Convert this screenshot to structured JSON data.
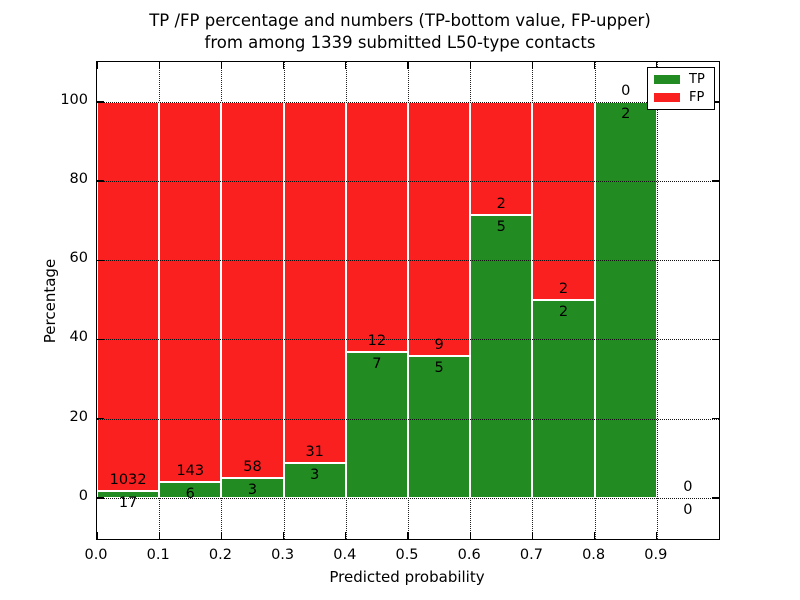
{
  "chart_data": {
    "type": "bar",
    "stacked": true,
    "title_lines": [
      "TP /FP percentage and numbers (TP-bottom value, FP-upper)",
      "from among 1339 submitted L50-type contacts"
    ],
    "xlabel": "Predicted probability",
    "ylabel": "Percentage",
    "total_submitted_contacts": 1339,
    "bins": [
      "0.0-0.1",
      "0.1-0.2",
      "0.2-0.3",
      "0.3-0.4",
      "0.4-0.5",
      "0.5-0.6",
      "0.6-0.7",
      "0.7-0.8",
      "0.8-0.9",
      "0.9-1.0"
    ],
    "bin_width": 0.1,
    "series": [
      {
        "name": "TP",
        "color": "#228b22",
        "counts": [
          17,
          6,
          3,
          3,
          7,
          5,
          5,
          2,
          2,
          0
        ]
      },
      {
        "name": "FP",
        "color": "#fa2020",
        "counts": [
          1032,
          143,
          58,
          31,
          12,
          9,
          2,
          2,
          0,
          0
        ]
      }
    ],
    "tp_percent": [
      1.62,
      4.03,
      4.92,
      8.82,
      36.84,
      35.71,
      71.43,
      50.0,
      100.0,
      null
    ],
    "bar_total_percent": 100,
    "count_labels": {
      "fp_upper": [
        "1032",
        "143",
        "58",
        "31",
        "12",
        "9",
        "2",
        "2",
        "0",
        "0"
      ],
      "tp_bottom": [
        "17",
        "6",
        "3",
        "3",
        "7",
        "5",
        "5",
        "2",
        "2",
        "0"
      ]
    },
    "xticks": [
      0.0,
      0.1,
      0.2,
      0.3,
      0.4,
      0.5,
      0.6,
      0.7,
      0.8,
      0.9
    ],
    "xtick_labels": [
      "0.0",
      "0.1",
      "0.2",
      "0.3",
      "0.4",
      "0.5",
      "0.6",
      "0.7",
      "0.8",
      "0.9"
    ],
    "yticks": [
      0,
      20,
      40,
      60,
      80,
      100
    ],
    "ytick_labels": [
      "0",
      "20",
      "40",
      "60",
      "80",
      "100"
    ],
    "xlim": [
      0.0,
      1.0
    ],
    "ylim": [
      -10.4,
      110.1
    ],
    "grid": true,
    "legend": {
      "position": "upper-right",
      "entries": [
        {
          "label": "TP",
          "color": "#228b22"
        },
        {
          "label": "FP",
          "color": "#fa2020"
        }
      ]
    }
  }
}
